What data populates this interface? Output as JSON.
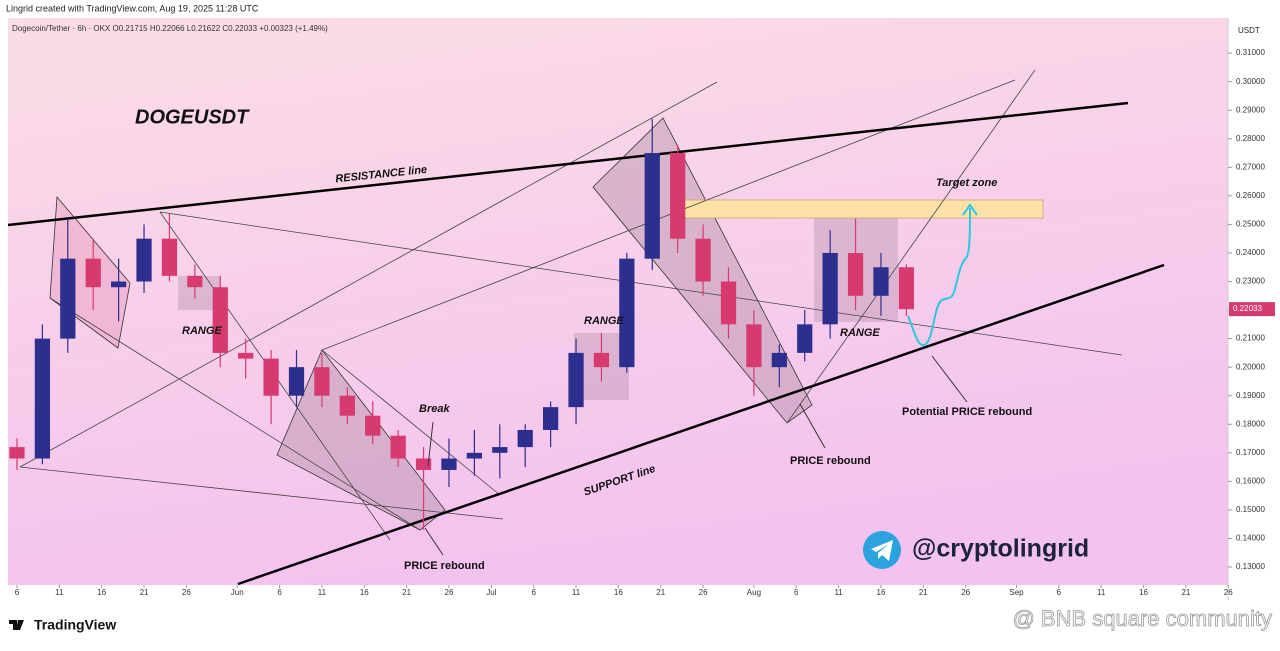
{
  "header": "Lingrid created with TradingView.com, Aug 19, 2025 11:28 UTC",
  "chart_data": {
    "type": "candlestick",
    "legend_line": "Dogecoin/Tether · 6h · OKX  O0.21715  H0.22066  L0.21622  C0.22033  +0.00323 (+1.49%)",
    "title": "DOGEUSDT",
    "y_axis_unit": "USDT",
    "up_color": "#2d2f8f",
    "down_color": "#d63a6e",
    "x": [
      0,
      3,
      6,
      9,
      12,
      15,
      18,
      21,
      24,
      27,
      30,
      33,
      36,
      39,
      42,
      45,
      48,
      51,
      54,
      57,
      60,
      63,
      66,
      69,
      72,
      75,
      78,
      81,
      84,
      87,
      90,
      93,
      96,
      99,
      102,
      105
    ],
    "open": [
      0.172,
      0.168,
      0.21,
      0.238,
      0.228,
      0.23,
      0.245,
      0.232,
      0.228,
      0.205,
      0.203,
      0.19,
      0.2,
      0.19,
      0.183,
      0.176,
      0.168,
      0.164,
      0.168,
      0.17,
      0.172,
      0.178,
      0.186,
      0.205,
      0.2,
      0.238,
      0.275,
      0.245,
      0.23,
      0.215,
      0.2,
      0.205,
      0.215,
      0.24,
      0.225,
      0.235
    ],
    "high": [
      0.175,
      0.215,
      0.252,
      0.245,
      0.238,
      0.25,
      0.254,
      0.236,
      0.232,
      0.21,
      0.206,
      0.206,
      0.205,
      0.193,
      0.188,
      0.178,
      0.172,
      0.175,
      0.178,
      0.18,
      0.18,
      0.188,
      0.21,
      0.212,
      0.24,
      0.287,
      0.278,
      0.25,
      0.235,
      0.22,
      0.208,
      0.22,
      0.248,
      0.252,
      0.24,
      0.236
    ],
    "low": [
      0.164,
      0.166,
      0.205,
      0.22,
      0.216,
      0.226,
      0.23,
      0.224,
      0.2,
      0.196,
      0.18,
      0.186,
      0.186,
      0.18,
      0.173,
      0.165,
      0.143,
      0.158,
      0.162,
      0.161,
      0.165,
      0.172,
      0.18,
      0.195,
      0.198,
      0.234,
      0.24,
      0.225,
      0.21,
      0.19,
      0.193,
      0.202,
      0.21,
      0.22,
      0.218,
      0.218
    ],
    "close": [
      0.168,
      0.21,
      0.238,
      0.228,
      0.23,
      0.245,
      0.232,
      0.228,
      0.205,
      0.203,
      0.19,
      0.2,
      0.19,
      0.183,
      0.176,
      0.168,
      0.164,
      0.168,
      0.17,
      0.172,
      0.178,
      0.186,
      0.205,
      0.2,
      0.238,
      0.275,
      0.245,
      0.23,
      0.215,
      0.2,
      0.205,
      0.215,
      0.24,
      0.225,
      0.235,
      0.2203
    ],
    "last_price": 0.22033,
    "xlim": [
      -1.06,
      142.97
    ],
    "xticks": [
      {
        "value": 0,
        "label": "6"
      },
      {
        "value": 5,
        "label": "11"
      },
      {
        "value": 10,
        "label": "16"
      },
      {
        "value": 15,
        "label": "21"
      },
      {
        "value": 20,
        "label": "26"
      },
      {
        "value": 26,
        "label": "Jun"
      },
      {
        "value": 31,
        "label": "6"
      },
      {
        "value": 36,
        "label": "11"
      },
      {
        "value": 41,
        "label": "16"
      },
      {
        "value": 46,
        "label": "21"
      },
      {
        "value": 51,
        "label": "26"
      },
      {
        "value": 56,
        "label": "Jul"
      },
      {
        "value": 61,
        "label": "6"
      },
      {
        "value": 66,
        "label": "11"
      },
      {
        "value": 71,
        "label": "16"
      },
      {
        "value": 76,
        "label": "21"
      },
      {
        "value": 81,
        "label": "26"
      },
      {
        "value": 87,
        "label": "Aug"
      },
      {
        "value": 92,
        "label": "6"
      },
      {
        "value": 97,
        "label": "11"
      },
      {
        "value": 102,
        "label": "16"
      },
      {
        "value": 107,
        "label": "21"
      },
      {
        "value": 112,
        "label": "26"
      },
      {
        "value": 118,
        "label": "Sep"
      },
      {
        "value": 123,
        "label": "6"
      },
      {
        "value": 128,
        "label": "11"
      },
      {
        "value": 133,
        "label": "16"
      },
      {
        "value": 138,
        "label": "21"
      },
      {
        "value": 143,
        "label": "26"
      }
    ],
    "ylim": [
      0.1237,
      0.3223
    ],
    "yticks": [
      {
        "value": 0.13,
        "label": "0.13000"
      },
      {
        "value": 0.14,
        "label": "0.14000"
      },
      {
        "value": 0.15,
        "label": "0.15000"
      },
      {
        "value": 0.16,
        "label": "0.16000"
      },
      {
        "value": 0.17,
        "label": "0.17000"
      },
      {
        "value": 0.18,
        "label": "0.18000"
      },
      {
        "value": 0.19,
        "label": "0.19000"
      },
      {
        "value": 0.2,
        "label": "0.20000"
      },
      {
        "value": 0.21,
        "label": "0.21000"
      },
      {
        "value": 0.22,
        "label": "0.22000"
      },
      {
        "value": 0.23,
        "label": "0.23000"
      },
      {
        "value": 0.24,
        "label": "0.24000"
      },
      {
        "value": 0.25,
        "label": "0.25000"
      },
      {
        "value": 0.26,
        "label": "0.26000"
      },
      {
        "value": 0.27,
        "label": "0.27000"
      },
      {
        "value": 0.28,
        "label": "0.28000"
      },
      {
        "value": 0.29,
        "label": "0.29000"
      },
      {
        "value": 0.3,
        "label": "0.30000"
      },
      {
        "value": 0.31,
        "label": "0.31000"
      }
    ],
    "annotations": {
      "resistance": "RESISTANCE line",
      "support": "SUPPORT line",
      "range": [
        "RANGE",
        "RANGE",
        "RANGE"
      ],
      "break": "Break",
      "rebound": [
        "PRICE rebound",
        "PRICE rebound"
      ],
      "potential": "Potential PRICE rebound",
      "target": "Target zone"
    }
  },
  "handle": "@cryptolingrid",
  "footer": {
    "logo": "TradingView",
    "watermark": "@ BNB square community"
  }
}
